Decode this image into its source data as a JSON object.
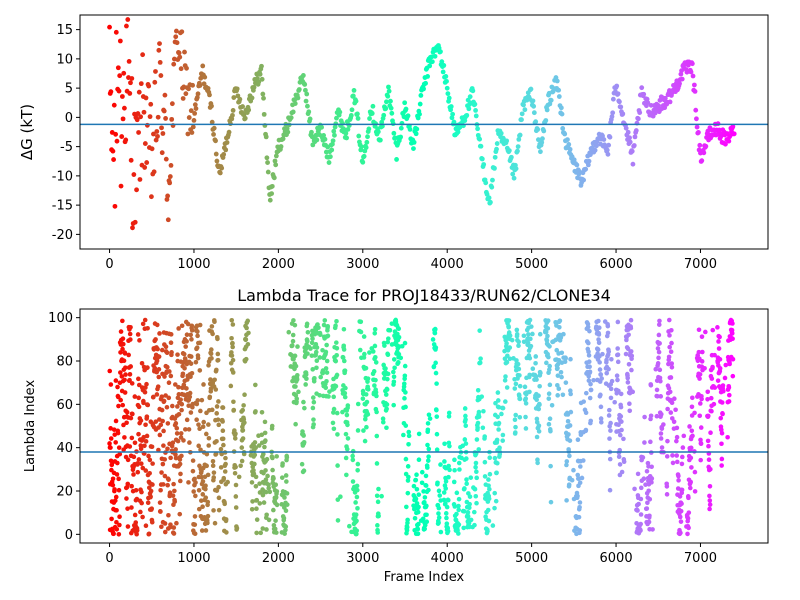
{
  "chart_data": [
    {
      "type": "scatter",
      "title": "",
      "xlabel": "",
      "ylabel": "ΔG (kT)",
      "xlim": [
        -350,
        7800
      ],
      "ylim": [
        -22.5,
        17.5
      ],
      "xticks": [
        0,
        1000,
        2000,
        3000,
        4000,
        5000,
        6000,
        7000
      ],
      "yticks": [
        -20,
        -15,
        -10,
        -5,
        0,
        5,
        10,
        15
      ],
      "grid": false,
      "colormap": "rainbow (red at frame 0 to violet at frame ~7400)",
      "hline": {
        "y": -1.2,
        "color": "#1f77b4"
      },
      "trace_keypoints": {
        "x": [
          0,
          100,
          200,
          300,
          400,
          500,
          600,
          700,
          800,
          900,
          1000,
          1100,
          1200,
          1300,
          1400,
          1500,
          1600,
          1700,
          1800,
          1900,
          2000,
          2100,
          2200,
          2300,
          2400,
          2500,
          2600,
          2700,
          2800,
          2900,
          3000,
          3100,
          3200,
          3300,
          3400,
          3500,
          3600,
          3700,
          3800,
          3900,
          4000,
          4100,
          4200,
          4300,
          4400,
          4500,
          4600,
          4700,
          4800,
          4900,
          5000,
          5100,
          5200,
          5300,
          5400,
          5500,
          5600,
          5700,
          5800,
          5900,
          6000,
          6100,
          6200,
          6300,
          6400,
          6500,
          6600,
          6700,
          6800,
          6900,
          7000,
          7100,
          7200,
          7300,
          7400
        ],
        "y": [
          3,
          -5,
          8,
          -10,
          2,
          -8,
          6,
          -12,
          15,
          4,
          0,
          8,
          2,
          -10,
          -3,
          5,
          0,
          5,
          8,
          -14,
          -5,
          -2,
          3,
          7,
          -4,
          -2,
          -7,
          1,
          -3,
          4,
          -8,
          2,
          -4,
          5,
          -6,
          2,
          -5,
          4,
          10,
          12,
          5,
          -3,
          0,
          4,
          -6,
          -15,
          -3,
          -5,
          -10,
          2,
          4,
          -6,
          3,
          6,
          -4,
          -8,
          -11,
          -6,
          -3,
          -6,
          6,
          -1,
          -7,
          4,
          1,
          2,
          3,
          5,
          8,
          9,
          -7,
          -3,
          -2,
          -4,
          -2
        ]
      }
    },
    {
      "type": "scatter",
      "title": "Lambda Trace for PROJ18433/RUN62/CLONE34",
      "xlabel": "Frame Index",
      "ylabel": "Lambda Index",
      "xlim": [
        -350,
        7800
      ],
      "ylim": [
        -4,
        104
      ],
      "xticks": [
        0,
        1000,
        2000,
        3000,
        4000,
        5000,
        6000,
        7000
      ],
      "yticks": [
        0,
        20,
        40,
        60,
        80,
        100
      ],
      "grid": false,
      "colormap": "rainbow (red at frame 0 to violet at frame ~7400)",
      "hline": {
        "y": 38,
        "color": "#1f77b4"
      },
      "value_range": [
        0,
        99
      ]
    }
  ]
}
